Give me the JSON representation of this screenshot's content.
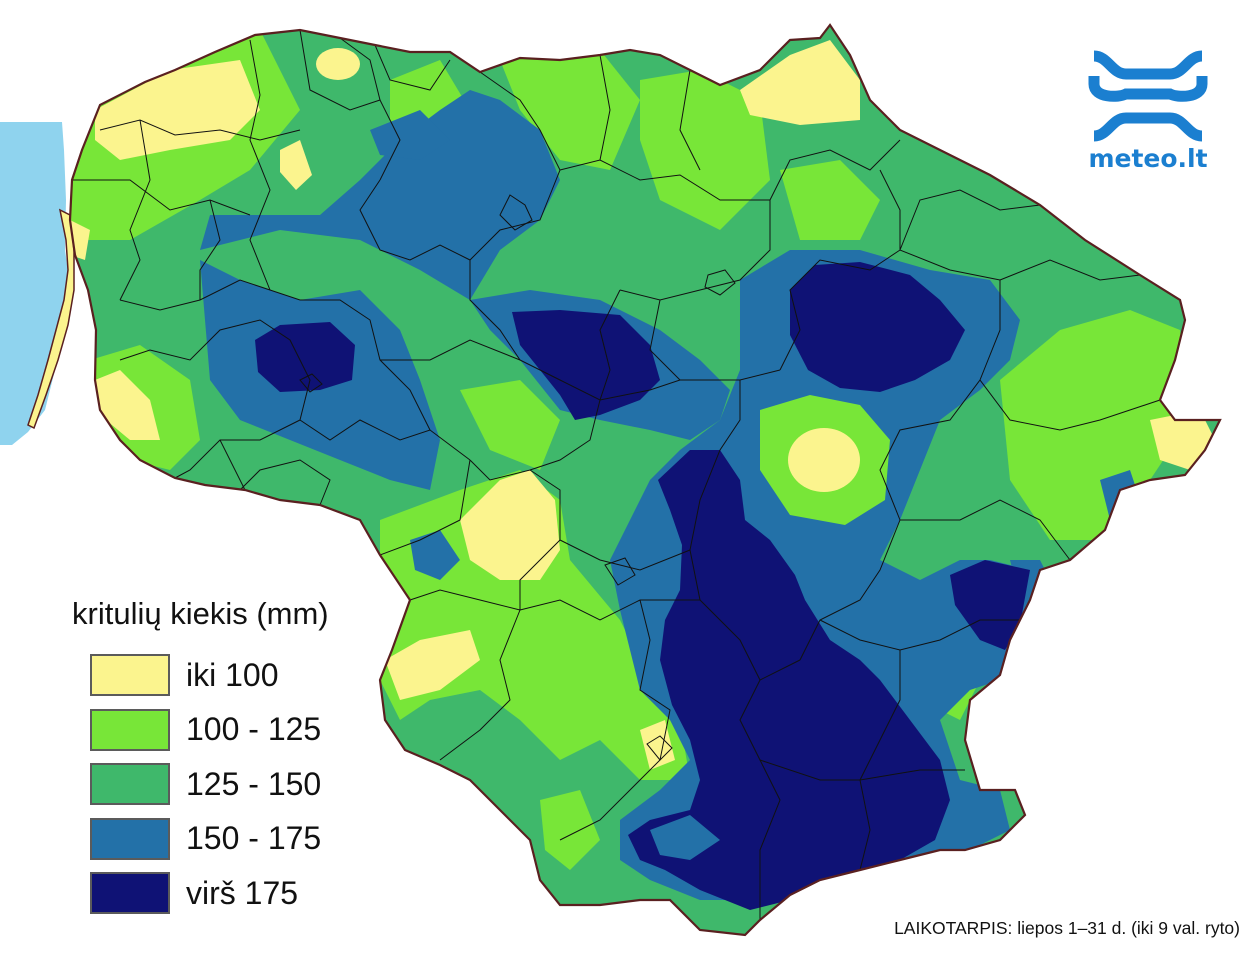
{
  "logo": {
    "text": "meteo.lt",
    "color": "#1b7fd0"
  },
  "legend": {
    "title": "kritulių kiekis (mm)",
    "items": [
      {
        "label": "iki 100",
        "color": "#fbf48e"
      },
      {
        "label": "100 - 125",
        "color": "#78e638"
      },
      {
        "label": "125 - 150",
        "color": "#3fb86b"
      },
      {
        "label": "150 - 175",
        "color": "#2371a8"
      },
      {
        "label": "virš 175",
        "color": "#0f1275"
      }
    ]
  },
  "period_text": "LAIKOTARPIS: liepos 1–31 d. (iki 9 val. ryto)",
  "colors": {
    "sea": "#8fd3ee",
    "border": "#5a2020",
    "district_line": "#111111"
  }
}
